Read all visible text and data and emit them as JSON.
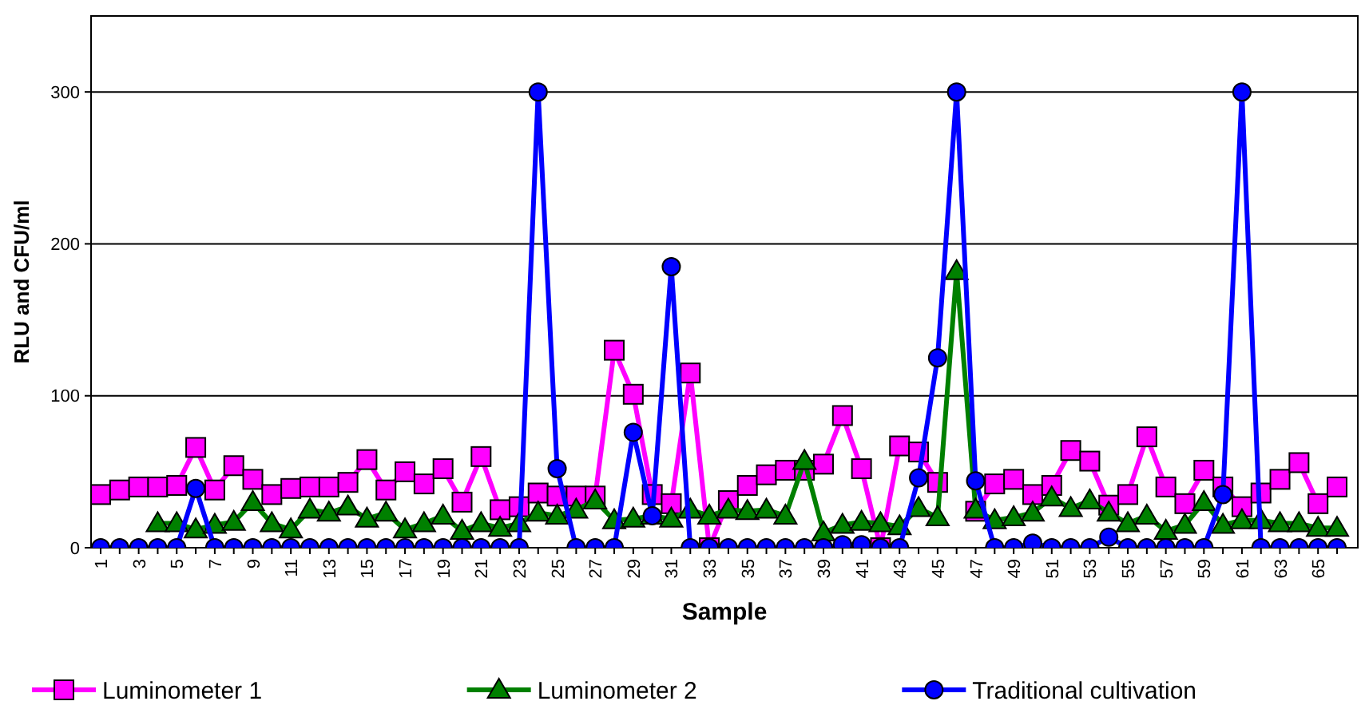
{
  "chart_data": {
    "type": "line",
    "xlabel": "Sample",
    "ylabel": "RLU and CFU/ml",
    "categories": [
      "1",
      null,
      "3",
      null,
      "5",
      null,
      "7",
      null,
      "9",
      null,
      "11",
      null,
      "13",
      null,
      "15",
      null,
      "17",
      null,
      "19",
      null,
      "21",
      null,
      "23",
      null,
      "25",
      null,
      "27",
      null,
      "29",
      null,
      "31",
      null,
      "33",
      null,
      "35",
      null,
      "37",
      null,
      "39",
      null,
      "41",
      null,
      "43",
      null,
      "45",
      null,
      "47",
      null,
      "49",
      null,
      "51",
      null,
      "53",
      null,
      "55",
      null,
      "57",
      null,
      "59",
      null,
      "61",
      null,
      "63",
      null,
      "65",
      null
    ],
    "series": [
      {
        "name": "Luminometer 1",
        "color": "#ff00ff",
        "marker": "square",
        "values": [
          35,
          38,
          40,
          40,
          41,
          66,
          38,
          54,
          45,
          35,
          39,
          40,
          40,
          43,
          58,
          38,
          50,
          42,
          52,
          30,
          60,
          25,
          27,
          36,
          34,
          34,
          34,
          130,
          101,
          35,
          29,
          115,
          0,
          31,
          41,
          48,
          51,
          51,
          55,
          87,
          52,
          0,
          67,
          63,
          43,
          null,
          24,
          42,
          45,
          35,
          41,
          64,
          57,
          28,
          35,
          73,
          40,
          29,
          51,
          40,
          27,
          36,
          45,
          56,
          29,
          40
        ]
      },
      {
        "name": "Luminometer 2",
        "color": "#008000",
        "marker": "triangle",
        "values": [
          null,
          null,
          null,
          16,
          16,
          12,
          15,
          17,
          30,
          16,
          12,
          25,
          23,
          27,
          19,
          23,
          12,
          16,
          21,
          11,
          16,
          13,
          16,
          23,
          21,
          25,
          31,
          18,
          19,
          21,
          19,
          25,
          21,
          25,
          24,
          25,
          21,
          57,
          10,
          15,
          17,
          16,
          14,
          26,
          20,
          182,
          25,
          18,
          20,
          23,
          33,
          26,
          31,
          23,
          16,
          21,
          11,
          15,
          30,
          15,
          18,
          18,
          16,
          16,
          13,
          13
        ]
      },
      {
        "name": "Traditional cultivation",
        "color": "#0000ff",
        "marker": "circle",
        "values": [
          0,
          0,
          0,
          0,
          0,
          39,
          0,
          0,
          0,
          0,
          0,
          0,
          0,
          0,
          0,
          0,
          0,
          0,
          0,
          0,
          0,
          0,
          0,
          300,
          52,
          0,
          0,
          0,
          76,
          21,
          185,
          0,
          0,
          0,
          0,
          0,
          0,
          0,
          0,
          2,
          2,
          0,
          0,
          46,
          125,
          300,
          44,
          0,
          0,
          3,
          0,
          0,
          0,
          7,
          0,
          0,
          0,
          0,
          0,
          35,
          300,
          0,
          0,
          0,
          0,
          0
        ]
      }
    ],
    "ylim": [
      0,
      350
    ],
    "yticks": [
      0,
      100,
      200,
      300
    ],
    "grid": "y",
    "legend": "bottom",
    "line_style": "solid"
  }
}
